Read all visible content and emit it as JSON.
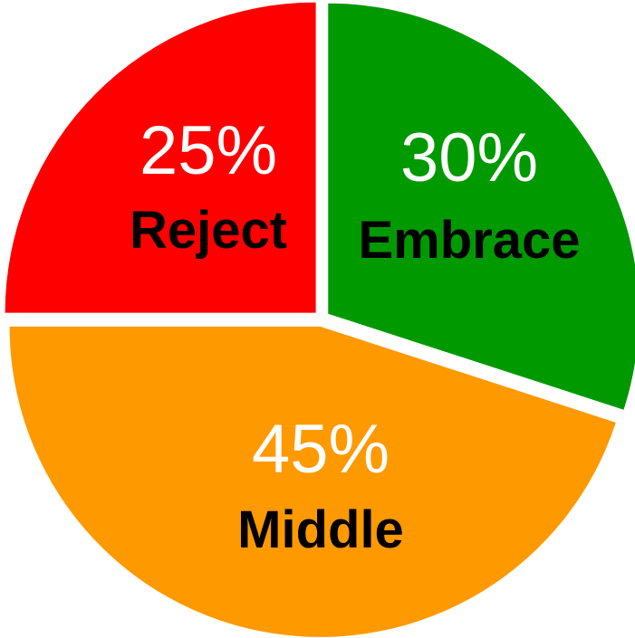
{
  "chart_data": {
    "type": "pie",
    "title": "",
    "slices": [
      {
        "label": "Reject",
        "value": 25,
        "value_label": "25%",
        "color": "#ff0000"
      },
      {
        "label": "Embrace",
        "value": 30,
        "value_label": "30%",
        "color": "#009900"
      },
      {
        "label": "Middle",
        "value": 45,
        "value_label": "45%",
        "color": "#ff9900"
      }
    ],
    "legend": "none"
  }
}
